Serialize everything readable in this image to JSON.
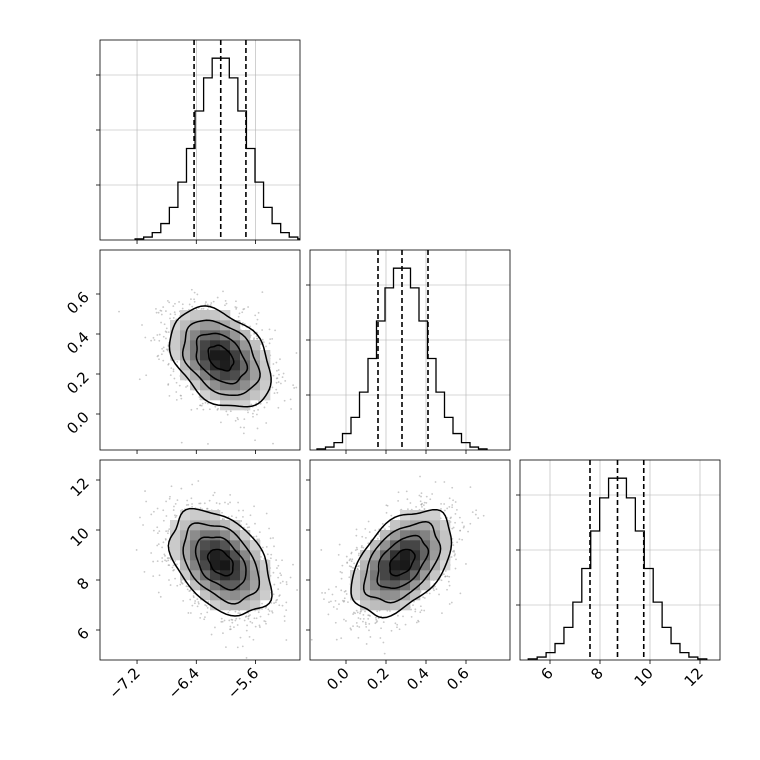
{
  "chart_data": {
    "type": "corner",
    "title": "",
    "colors": {
      "hist_line": "#000000",
      "scatter": "#9a9a9a",
      "grid": "#b0b0b0",
      "contour": "#000000",
      "density_max": "#000000"
    },
    "parameters": [
      {
        "name": "",
        "range": [
          -7.7,
          -5.0
        ],
        "ticks": [
          -7.2,
          -6.4,
          -5.6
        ],
        "tick_labels": [
          "−7.2",
          "−6.4",
          "−5.6"
        ],
        "mean": -6.07,
        "sd": 0.34,
        "quantiles": [
          -6.43,
          -6.07,
          -5.73
        ]
      },
      {
        "name": "",
        "range": [
          -0.18,
          0.82
        ],
        "ticks": [
          0.0,
          0.2,
          0.4,
          0.6
        ],
        "tick_labels": [
          "0.0",
          "0.2",
          "0.4",
          "0.6"
        ],
        "mean": 0.28,
        "sd": 0.125,
        "quantiles": [
          0.16,
          0.28,
          0.41
        ]
      },
      {
        "name": "",
        "range": [
          4.8,
          12.8
        ],
        "ticks": [
          6,
          8,
          10,
          12
        ],
        "tick_labels": [
          "6",
          "8",
          "10",
          "12"
        ],
        "mean": 8.7,
        "sd": 1.05,
        "quantiles": [
          7.6,
          8.7,
          9.75
        ]
      }
    ],
    "pairs": [
      {
        "x_param": 0,
        "y_param": 1,
        "correlation": -0.35
      },
      {
        "x_param": 0,
        "y_param": 2,
        "correlation": -0.4
      },
      {
        "x_param": 1,
        "y_param": 2,
        "correlation": 0.45
      }
    ],
    "histogram_bins": 20,
    "contour_levels_sigma": [
      0.5,
      1.0,
      1.5,
      2.0
    ],
    "grid": true
  }
}
